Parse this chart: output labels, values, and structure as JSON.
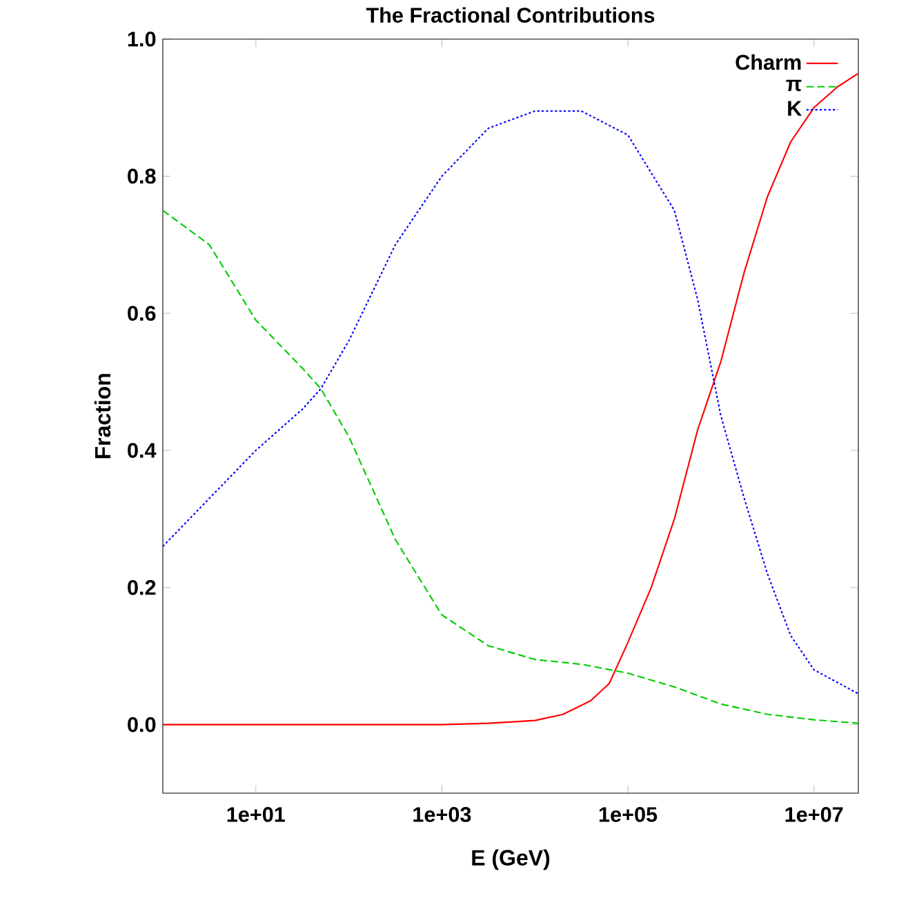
{
  "chart_data": {
    "type": "line",
    "title": "The Fractional Contributions",
    "xlabel": "E (GeV)",
    "ylabel": "Fraction",
    "log": "x",
    "xlim": [
      1,
      30000000
    ],
    "ylim": [
      -0.1,
      1.0
    ],
    "xticks": [
      {
        "value": 10,
        "label": "1e+01"
      },
      {
        "value": 1000,
        "label": "1e+03"
      },
      {
        "value": 100000,
        "label": "1e+05"
      },
      {
        "value": 10000000,
        "label": "1e+07"
      }
    ],
    "yticks": [
      {
        "value": 0,
        "label": "0.0"
      },
      {
        "value": 0.2,
        "label": "0.2"
      },
      {
        "value": 0.4,
        "label": "0.4"
      },
      {
        "value": 0.6,
        "label": "0.6"
      },
      {
        "value": 0.8,
        "label": "0.8"
      },
      {
        "value": 1.0,
        "label": "1.0"
      }
    ],
    "grid": false,
    "legend": "top right",
    "marker": "none",
    "series": [
      {
        "name": "Charm",
        "color": "#ff0000",
        "line_style": "solid",
        "x": [
          1,
          100,
          1000,
          3160,
          10000,
          20000,
          40000,
          63000,
          100000,
          178000,
          316000,
          562000,
          1000000,
          1780000,
          3160000,
          5620000,
          10000000,
          17800000,
          30000000
        ],
        "values": [
          0,
          0,
          0,
          0.002,
          0.006,
          0.015,
          0.035,
          0.06,
          0.12,
          0.2,
          0.3,
          0.43,
          0.53,
          0.66,
          0.77,
          0.85,
          0.9,
          0.93,
          0.95
        ]
      },
      {
        "name": "π",
        "color": "#00cc00",
        "line_style": "dashed",
        "x": [
          1,
          3.16,
          10,
          31.6,
          50,
          100,
          316,
          1000,
          3160,
          10000,
          31600,
          100000,
          316000,
          1000000,
          3160000,
          10000000,
          30000000
        ],
        "values": [
          0.75,
          0.7,
          0.59,
          0.52,
          0.49,
          0.42,
          0.27,
          0.16,
          0.115,
          0.095,
          0.088,
          0.075,
          0.055,
          0.03,
          0.015,
          0.007,
          0.002
        ]
      },
      {
        "name": "K",
        "color": "#0000ff",
        "line_style": "dotted",
        "x": [
          1,
          3.16,
          10,
          31.6,
          50,
          100,
          316,
          1000,
          3160,
          10000,
          31600,
          100000,
          316000,
          562000,
          1000000,
          1780000,
          3160000,
          5620000,
          10000000,
          30000000
        ],
        "values": [
          0.26,
          0.33,
          0.4,
          0.46,
          0.49,
          0.56,
          0.7,
          0.8,
          0.87,
          0.895,
          0.895,
          0.86,
          0.75,
          0.62,
          0.45,
          0.33,
          0.22,
          0.13,
          0.08,
          0.045
        ]
      }
    ]
  }
}
